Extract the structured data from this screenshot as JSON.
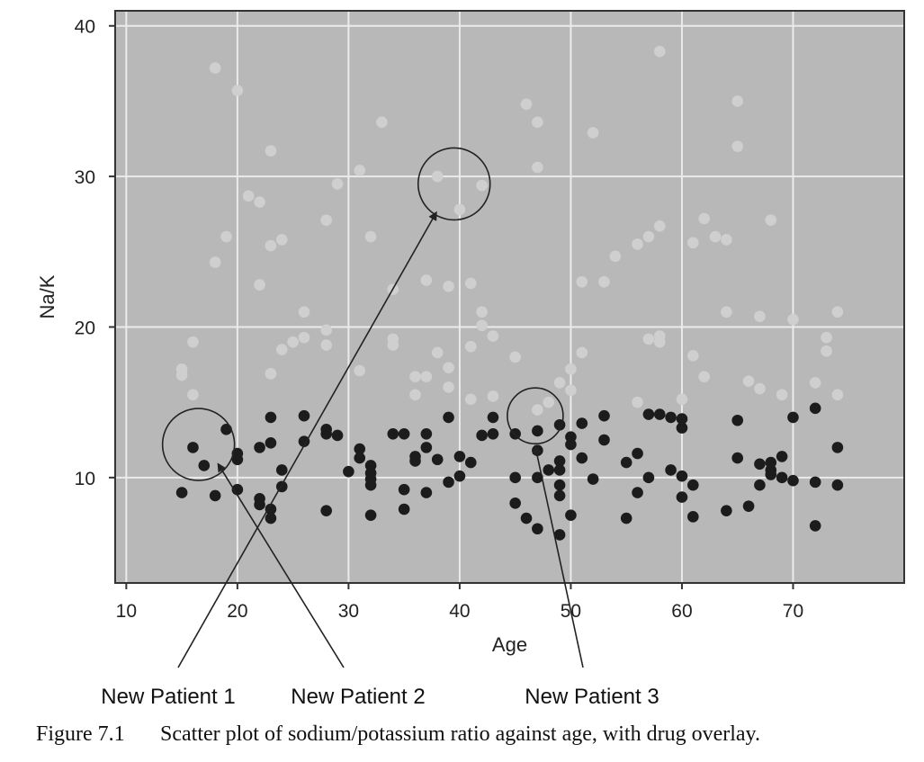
{
  "chart_data": {
    "type": "scatter",
    "title": "",
    "xlabel": "Age",
    "ylabel": "Na/K",
    "xlim": [
      9,
      80
    ],
    "ylim": [
      3,
      41
    ],
    "x_ticks": [
      10,
      20,
      30,
      40,
      50,
      60,
      70
    ],
    "y_ticks": [
      10,
      20,
      30,
      40
    ],
    "grid": true,
    "background_color": "#b8b8b8",
    "series": [
      {
        "color": "#cfcfcf",
        "points": [
          [
            15,
            17.2
          ],
          [
            15,
            16.8
          ],
          [
            16,
            19.0
          ],
          [
            16,
            15.5
          ],
          [
            18,
            37.2
          ],
          [
            18,
            24.3
          ],
          [
            19,
            26.0
          ],
          [
            20,
            35.7
          ],
          [
            21,
            28.7
          ],
          [
            22,
            28.3
          ],
          [
            22,
            22.8
          ],
          [
            23,
            31.7
          ],
          [
            23,
            25.4
          ],
          [
            23,
            16.9
          ],
          [
            24,
            25.8
          ],
          [
            24,
            18.5
          ],
          [
            25,
            19.0
          ],
          [
            26,
            21.0
          ],
          [
            26,
            19.3
          ],
          [
            28,
            27.1
          ],
          [
            28,
            19.8
          ],
          [
            28,
            18.8
          ],
          [
            29,
            29.5
          ],
          [
            31,
            30.4
          ],
          [
            31,
            17.1
          ],
          [
            32,
            26.0
          ],
          [
            33,
            33.6
          ],
          [
            34,
            22.5
          ],
          [
            34,
            19.2
          ],
          [
            34,
            18.8
          ],
          [
            36,
            16.7
          ],
          [
            36,
            15.5
          ],
          [
            37,
            23.1
          ],
          [
            37,
            16.7
          ],
          [
            38,
            30.0
          ],
          [
            38,
            18.3
          ],
          [
            39,
            22.7
          ],
          [
            39,
            17.3
          ],
          [
            39,
            16.0
          ],
          [
            40,
            27.8
          ],
          [
            41,
            22.9
          ],
          [
            41,
            18.7
          ],
          [
            41,
            15.2
          ],
          [
            42,
            29.4
          ],
          [
            42,
            21.0
          ],
          [
            42,
            20.1
          ],
          [
            43,
            19.4
          ],
          [
            43,
            15.4
          ],
          [
            45,
            18.0
          ],
          [
            46,
            34.8
          ],
          [
            47,
            33.6
          ],
          [
            47,
            30.6
          ],
          [
            47,
            14.5
          ],
          [
            48,
            15.0
          ],
          [
            49,
            16.3
          ],
          [
            50,
            17.2
          ],
          [
            50,
            15.8
          ],
          [
            51,
            23.0
          ],
          [
            51,
            18.3
          ],
          [
            52,
            32.9
          ],
          [
            53,
            23.0
          ],
          [
            54,
            24.7
          ],
          [
            56,
            25.5
          ],
          [
            56,
            15.0
          ],
          [
            57,
            26.0
          ],
          [
            57,
            19.2
          ],
          [
            58,
            38.3
          ],
          [
            58,
            26.7
          ],
          [
            58,
            19.4
          ],
          [
            58,
            19.0
          ],
          [
            60,
            15.2
          ],
          [
            61,
            25.6
          ],
          [
            61,
            18.1
          ],
          [
            62,
            27.2
          ],
          [
            62,
            16.7
          ],
          [
            63,
            26.0
          ],
          [
            64,
            25.8
          ],
          [
            64,
            21.0
          ],
          [
            65,
            35.0
          ],
          [
            65,
            32.0
          ],
          [
            66,
            16.4
          ],
          [
            67,
            20.7
          ],
          [
            67,
            15.9
          ],
          [
            68,
            27.1
          ],
          [
            69,
            15.5
          ],
          [
            70,
            20.5
          ],
          [
            72,
            16.3
          ],
          [
            73,
            19.3
          ],
          [
            73,
            18.4
          ],
          [
            74,
            21.0
          ],
          [
            74,
            15.5
          ]
        ]
      },
      {
        "color": "#1c1c1c",
        "points": [
          [
            15,
            9.0
          ],
          [
            16,
            12.0
          ],
          [
            17,
            10.8
          ],
          [
            18,
            8.8
          ],
          [
            19,
            13.2
          ],
          [
            20,
            11.6
          ],
          [
            20,
            11.2
          ],
          [
            20,
            9.2
          ],
          [
            22,
            12.0
          ],
          [
            22,
            8.6
          ],
          [
            22,
            8.2
          ],
          [
            23,
            14.0
          ],
          [
            23,
            12.3
          ],
          [
            23,
            7.9
          ],
          [
            23,
            7.3
          ],
          [
            24,
            10.5
          ],
          [
            24,
            9.4
          ],
          [
            26,
            14.1
          ],
          [
            26,
            12.4
          ],
          [
            28,
            13.2
          ],
          [
            28,
            12.9
          ],
          [
            28,
            7.8
          ],
          [
            29,
            12.8
          ],
          [
            30,
            10.4
          ],
          [
            31,
            11.9
          ],
          [
            31,
            11.3
          ],
          [
            32,
            10.8
          ],
          [
            32,
            10.3
          ],
          [
            32,
            9.9
          ],
          [
            32,
            9.5
          ],
          [
            32,
            7.5
          ],
          [
            34,
            12.9
          ],
          [
            35,
            12.9
          ],
          [
            35,
            9.2
          ],
          [
            35,
            7.9
          ],
          [
            36,
            11.4
          ],
          [
            36,
            11.1
          ],
          [
            37,
            12.9
          ],
          [
            37,
            12.0
          ],
          [
            37,
            9.0
          ],
          [
            38,
            11.2
          ],
          [
            39,
            14.0
          ],
          [
            39,
            9.7
          ],
          [
            40,
            11.4
          ],
          [
            40,
            10.1
          ],
          [
            41,
            11.0
          ],
          [
            42,
            12.8
          ],
          [
            43,
            14.0
          ],
          [
            43,
            12.9
          ],
          [
            45,
            12.9
          ],
          [
            45,
            10.0
          ],
          [
            45,
            8.3
          ],
          [
            46,
            7.3
          ],
          [
            47,
            13.1
          ],
          [
            47,
            11.8
          ],
          [
            47,
            10.0
          ],
          [
            47,
            6.6
          ],
          [
            48,
            10.5
          ],
          [
            49,
            13.5
          ],
          [
            49,
            11.1
          ],
          [
            49,
            10.5
          ],
          [
            49,
            9.5
          ],
          [
            49,
            8.8
          ],
          [
            49,
            6.2
          ],
          [
            50,
            12.7
          ],
          [
            50,
            12.2
          ],
          [
            50,
            7.5
          ],
          [
            51,
            13.6
          ],
          [
            51,
            11.3
          ],
          [
            52,
            9.9
          ],
          [
            53,
            14.1
          ],
          [
            53,
            12.5
          ],
          [
            55,
            11.0
          ],
          [
            55,
            7.3
          ],
          [
            56,
            11.6
          ],
          [
            56,
            9.0
          ],
          [
            57,
            14.2
          ],
          [
            57,
            10.0
          ],
          [
            58,
            14.2
          ],
          [
            59,
            14.0
          ],
          [
            59,
            10.5
          ],
          [
            60,
            13.9
          ],
          [
            60,
            13.3
          ],
          [
            60,
            10.1
          ],
          [
            60,
            8.7
          ],
          [
            61,
            9.5
          ],
          [
            61,
            7.4
          ],
          [
            64,
            7.8
          ],
          [
            65,
            13.8
          ],
          [
            65,
            11.3
          ],
          [
            66,
            8.1
          ],
          [
            67,
            10.9
          ],
          [
            67,
            9.5
          ],
          [
            68,
            11.0
          ],
          [
            68,
            10.5
          ],
          [
            68,
            10.2
          ],
          [
            69,
            11.4
          ],
          [
            69,
            10.0
          ],
          [
            70,
            14.0
          ],
          [
            70,
            9.8
          ],
          [
            72,
            14.6
          ],
          [
            72,
            9.7
          ],
          [
            72,
            6.8
          ],
          [
            74,
            12.0
          ],
          [
            74,
            9.5
          ]
        ]
      }
    ],
    "annotations": [
      {
        "label": "New Patient 1",
        "x": 39.5,
        "y": 29.5
      },
      {
        "label": "New Patient 2",
        "x": 16.5,
        "y": 12.2
      },
      {
        "label": "New Patient 3",
        "x": 46.8,
        "y": 14.1
      }
    ]
  },
  "caption": {
    "figure_number": "Figure 7.1",
    "text": "Scatter plot of sodium/potassium ratio against age, with drug overlay."
  }
}
